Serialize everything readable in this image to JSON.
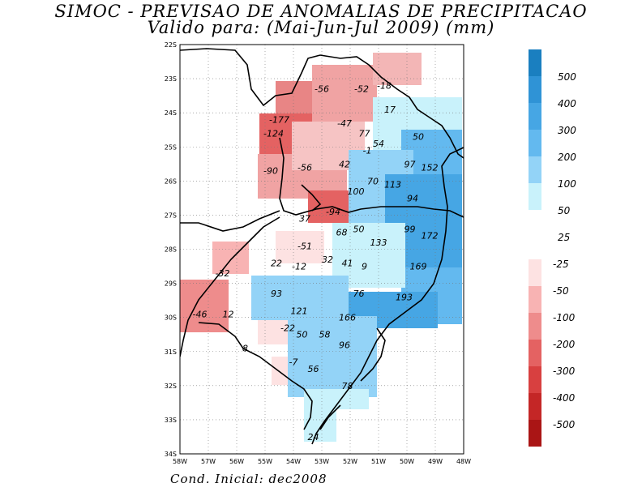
{
  "title_line1": "SIMOC - PREVISAO DE ANOMALIAS DE PRECIPITACAO",
  "title_line2": "Valido para: (Mai-Jun-Jul 2009) (mm)",
  "footer": "Cond. Inicial: dec2008",
  "axes": {
    "lat_labels": [
      "22S",
      "23S",
      "24S",
      "25S",
      "26S",
      "27S",
      "28S",
      "29S",
      "30S",
      "31S",
      "32S",
      "33S",
      "34S"
    ],
    "lon_labels": [
      "58W",
      "57W",
      "56W",
      "55W",
      "54W",
      "53W",
      "52W",
      "51W",
      "50W",
      "49W",
      "48W"
    ]
  },
  "colorbar_positive": {
    "labels": [
      "500",
      "400",
      "300",
      "200",
      "100",
      "50",
      "25"
    ],
    "colors": [
      "#1a7fc0",
      "#2f93d6",
      "#46a6e4",
      "#63b9ef",
      "#93d3f7",
      "#c9f2fb"
    ]
  },
  "colorbar_negative": {
    "labels": [
      "-25",
      "-50",
      "-100",
      "-200",
      "-300",
      "-400",
      "-500"
    ],
    "colors": [
      "#fde2e2",
      "#f8b3b3",
      "#ee8c8c",
      "#e46262",
      "#d84040",
      "#c42626",
      "#aa1515"
    ]
  },
  "value_labels": [
    {
      "text": "-56",
      "lat": 23.3,
      "lon": -53.0
    },
    {
      "text": "-52",
      "lat": 23.3,
      "lon": -51.6
    },
    {
      "text": "-18",
      "lat": 23.2,
      "lon": -50.8
    },
    {
      "text": "17",
      "lat": 23.9,
      "lon": -50.6
    },
    {
      "text": "-177",
      "lat": 24.2,
      "lon": -54.5
    },
    {
      "text": "-47",
      "lat": 24.3,
      "lon": -52.2
    },
    {
      "text": "-124",
      "lat": 24.6,
      "lon": -54.7
    },
    {
      "text": "77",
      "lat": 24.6,
      "lon": -51.5
    },
    {
      "text": "50",
      "lat": 24.7,
      "lon": -49.6
    },
    {
      "text": "54",
      "lat": 24.9,
      "lon": -51.0
    },
    {
      "text": "-1",
      "lat": 25.1,
      "lon": -51.4
    },
    {
      "text": "42",
      "lat": 25.5,
      "lon": -52.2
    },
    {
      "text": "97",
      "lat": 25.5,
      "lon": -49.9
    },
    {
      "text": "152",
      "lat": 25.6,
      "lon": -49.2
    },
    {
      "text": "-90",
      "lat": 25.7,
      "lon": -54.8
    },
    {
      "text": "-56",
      "lat": 25.6,
      "lon": -53.6
    },
    {
      "text": "70",
      "lat": 26.0,
      "lon": -51.2
    },
    {
      "text": "113",
      "lat": 26.1,
      "lon": -50.5
    },
    {
      "text": "100",
      "lat": 26.3,
      "lon": -51.8
    },
    {
      "text": "94",
      "lat": 26.5,
      "lon": -49.8
    },
    {
      "text": "-94",
      "lat": 26.9,
      "lon": -52.6
    },
    {
      "text": "37",
      "lat": 27.1,
      "lon": -53.6
    },
    {
      "text": "50",
      "lat": 27.4,
      "lon": -51.7
    },
    {
      "text": "99",
      "lat": 27.4,
      "lon": -49.9
    },
    {
      "text": "68",
      "lat": 27.5,
      "lon": -52.3
    },
    {
      "text": "172",
      "lat": 27.6,
      "lon": -49.2
    },
    {
      "text": "133",
      "lat": 27.8,
      "lon": -51.0
    },
    {
      "text": "-51",
      "lat": 27.9,
      "lon": -53.6
    },
    {
      "text": "32",
      "lat": 28.3,
      "lon": -52.8
    },
    {
      "text": "41",
      "lat": 28.4,
      "lon": -52.1
    },
    {
      "text": "22",
      "lat": 28.4,
      "lon": -54.6
    },
    {
      "text": "169",
      "lat": 28.5,
      "lon": -49.6
    },
    {
      "text": "9",
      "lat": 28.5,
      "lon": -51.5
    },
    {
      "text": "-12",
      "lat": 28.5,
      "lon": -53.8
    },
    {
      "text": "-32",
      "lat": 28.7,
      "lon": -56.5
    },
    {
      "text": "93",
      "lat": 29.3,
      "lon": -54.6
    },
    {
      "text": "76",
      "lat": 29.3,
      "lon": -51.7
    },
    {
      "text": "193",
      "lat": 29.4,
      "lon": -50.1
    },
    {
      "text": "121",
      "lat": 29.8,
      "lon": -53.8
    },
    {
      "text": "-46",
      "lat": 29.9,
      "lon": -57.3
    },
    {
      "text": "12",
      "lat": 29.9,
      "lon": -56.3
    },
    {
      "text": "166",
      "lat": 30.0,
      "lon": -52.1
    },
    {
      "text": "-22",
      "lat": 30.3,
      "lon": -54.2
    },
    {
      "text": "50",
      "lat": 30.5,
      "lon": -53.7
    },
    {
      "text": "58",
      "lat": 30.5,
      "lon": -52.9
    },
    {
      "text": "96",
      "lat": 30.8,
      "lon": -52.2
    },
    {
      "text": "8",
      "lat": 30.9,
      "lon": -55.7
    },
    {
      "text": "-7",
      "lat": 31.3,
      "lon": -54.0
    },
    {
      "text": "56",
      "lat": 31.5,
      "lon": -53.3
    },
    {
      "text": "78",
      "lat": 32.0,
      "lon": -52.1
    },
    {
      "text": "24",
      "lat": 33.5,
      "lon": -53.3
    }
  ]
}
